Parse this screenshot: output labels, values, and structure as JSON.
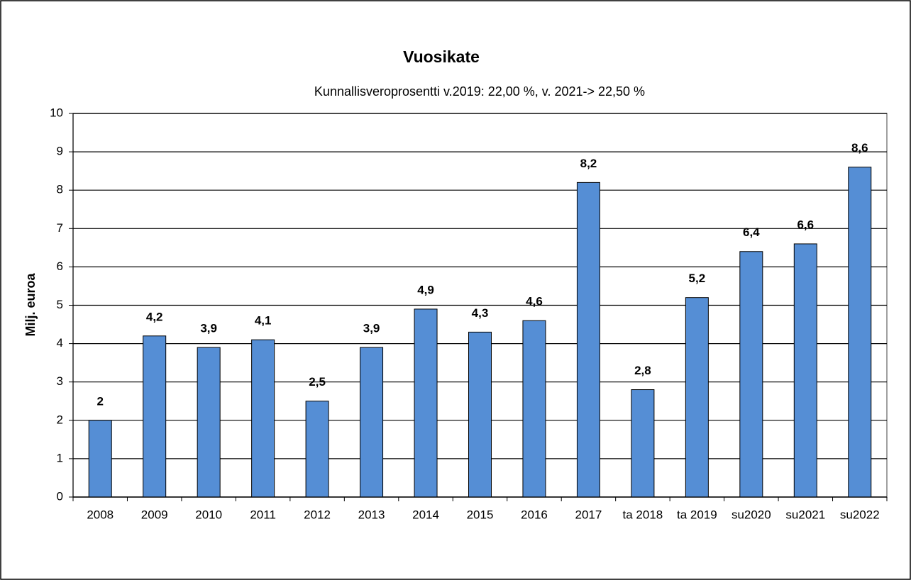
{
  "chart_data": {
    "type": "bar",
    "title": "Vuosikate",
    "subtitle": "Kunnallisveroprosentti v.2019: 22,00 %, v. 2021-> 22,50 %",
    "y_label": "Milj. euroa",
    "categories": [
      "2008",
      "2009",
      "2010",
      "2011",
      "2012",
      "2013",
      "2014",
      "2015",
      "2016",
      "2017",
      "ta 2018",
      "ta 2019",
      "su2020",
      "su2021",
      "su2022"
    ],
    "values": [
      2,
      4.2,
      3.9,
      4.1,
      2.5,
      3.9,
      4.9,
      4.3,
      4.6,
      8.2,
      2.8,
      5.2,
      6.4,
      6.6,
      8.6
    ],
    "value_labels": [
      "2",
      "4,2",
      "3,9",
      "4,1",
      "2,5",
      "3,9",
      "4,9",
      "4,3",
      "4,6",
      "8,2",
      "2,8",
      "5,2",
      "6,4",
      "6,6",
      "8,6"
    ],
    "color": "#558ed5",
    "ylim": [
      0,
      10
    ],
    "yticks": [
      0,
      1,
      2,
      3,
      4,
      5,
      6,
      7,
      8,
      9,
      10
    ],
    "grid": true
  }
}
